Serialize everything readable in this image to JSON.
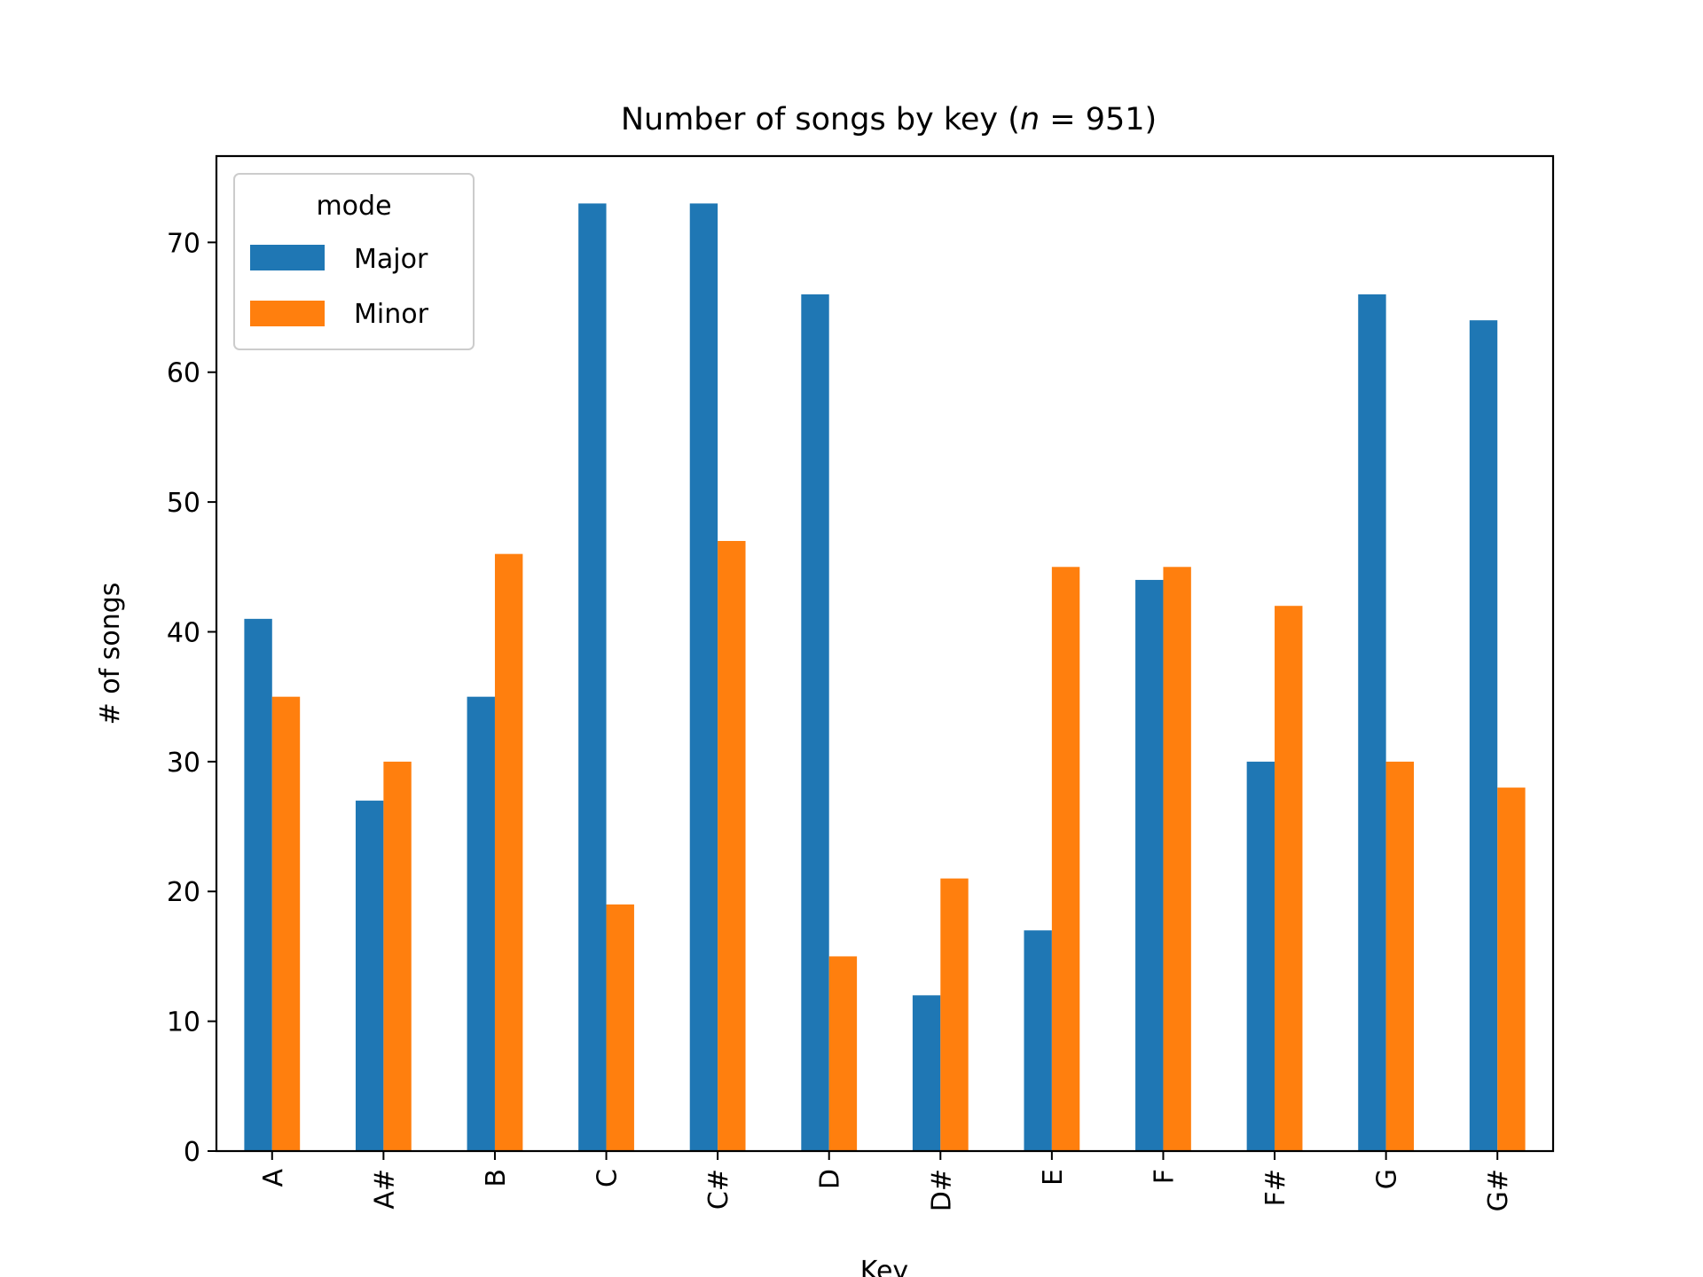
{
  "chart_data": {
    "type": "bar",
    "title": "Number of songs by key (",
    "title_var": "n",
    "title_eq": " = 951)",
    "xlabel": "Key",
    "ylabel": "# of songs",
    "categories": [
      "A",
      "A#",
      "B",
      "C",
      "C#",
      "D",
      "D#",
      "E",
      "F",
      "F#",
      "G",
      "G#"
    ],
    "series": [
      {
        "name": "Major",
        "color": "#1f77b4",
        "values": [
          41,
          27,
          35,
          73,
          73,
          66,
          12,
          17,
          44,
          30,
          66,
          64
        ]
      },
      {
        "name": "Minor",
        "color": "#ff7f0e",
        "values": [
          35,
          30,
          46,
          19,
          47,
          15,
          21,
          45,
          45,
          42,
          30,
          28
        ]
      }
    ],
    "ylim": [
      0,
      76.65
    ],
    "yticks": [
      0,
      10,
      20,
      30,
      40,
      50,
      60,
      70
    ],
    "legend": {
      "title": "mode",
      "placement": "top-left"
    },
    "grid": false
  }
}
